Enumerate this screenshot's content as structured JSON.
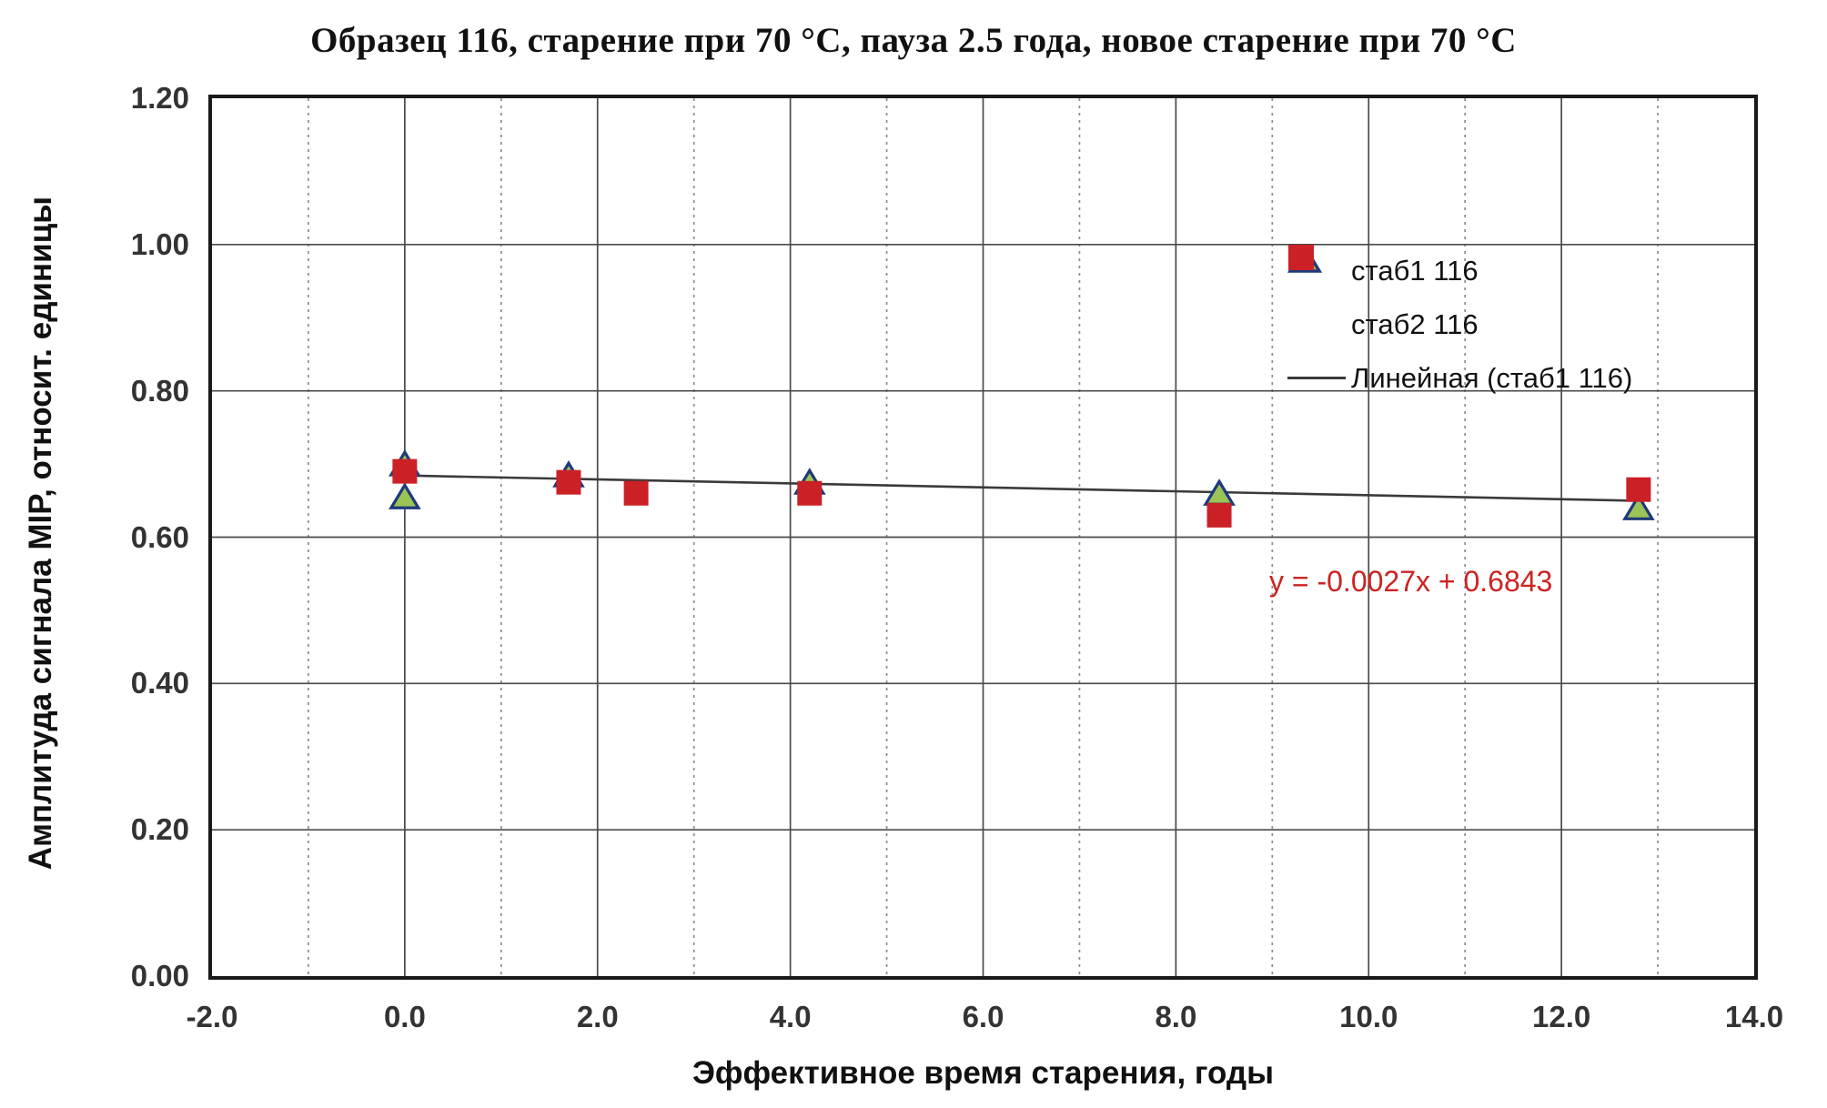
{
  "chart_data": {
    "type": "scatter",
    "title": "Образец 116, старение при 70 °C,  пауза 2.5 года, новое старение при 70 °C",
    "xlabel": "Эффективное время старения, годы",
    "ylabel": "Амплитуда сигнала MIP, относит. единицы",
    "xlim": [
      -2.0,
      14.0
    ],
    "ylim": [
      0.0,
      1.2
    ],
    "xticks": [
      "-2.0",
      "0.0",
      "2.0",
      "4.0",
      "6.0",
      "8.0",
      "10.0",
      "12.0",
      "14.0"
    ],
    "yticks": [
      "0.00",
      "0.20",
      "0.40",
      "0.60",
      "0.80",
      "1.00",
      "1.20"
    ],
    "grid": {
      "x_major_step": 2.0,
      "x_minor_step": 1.0,
      "y_major_step": 0.2,
      "major_color": "#4A4A4A",
      "minor_color": "#8C8C8C"
    },
    "series": [
      {
        "name": "стаб1 116",
        "marker": "triangle",
        "fill": "#9CC355",
        "stroke": "#1F3A7A",
        "points": [
          [
            0.0,
            0.7
          ],
          [
            0.0,
            0.655
          ],
          [
            1.7,
            0.685
          ],
          [
            4.2,
            0.675
          ],
          [
            8.45,
            0.66
          ],
          [
            12.8,
            0.64
          ]
        ]
      },
      {
        "name": "стаб2 116",
        "marker": "square",
        "fill": "#CB2026",
        "stroke": "#CB2026",
        "points": [
          [
            0.0,
            0.69
          ],
          [
            1.7,
            0.675
          ],
          [
            2.4,
            0.66
          ],
          [
            4.2,
            0.66
          ],
          [
            8.45,
            0.63
          ],
          [
            12.8,
            0.665
          ]
        ]
      }
    ],
    "trendline": {
      "label": "Линейная (стаб1 116)",
      "equation": "y = -0.0027x + 0.6843",
      "slope": -0.0027,
      "intercept": 0.6843,
      "x_start": 0.0,
      "x_end": 12.8,
      "color": "#3A3A3A",
      "equation_color": "#CC2222"
    },
    "legend_position": "inside-top-right"
  }
}
